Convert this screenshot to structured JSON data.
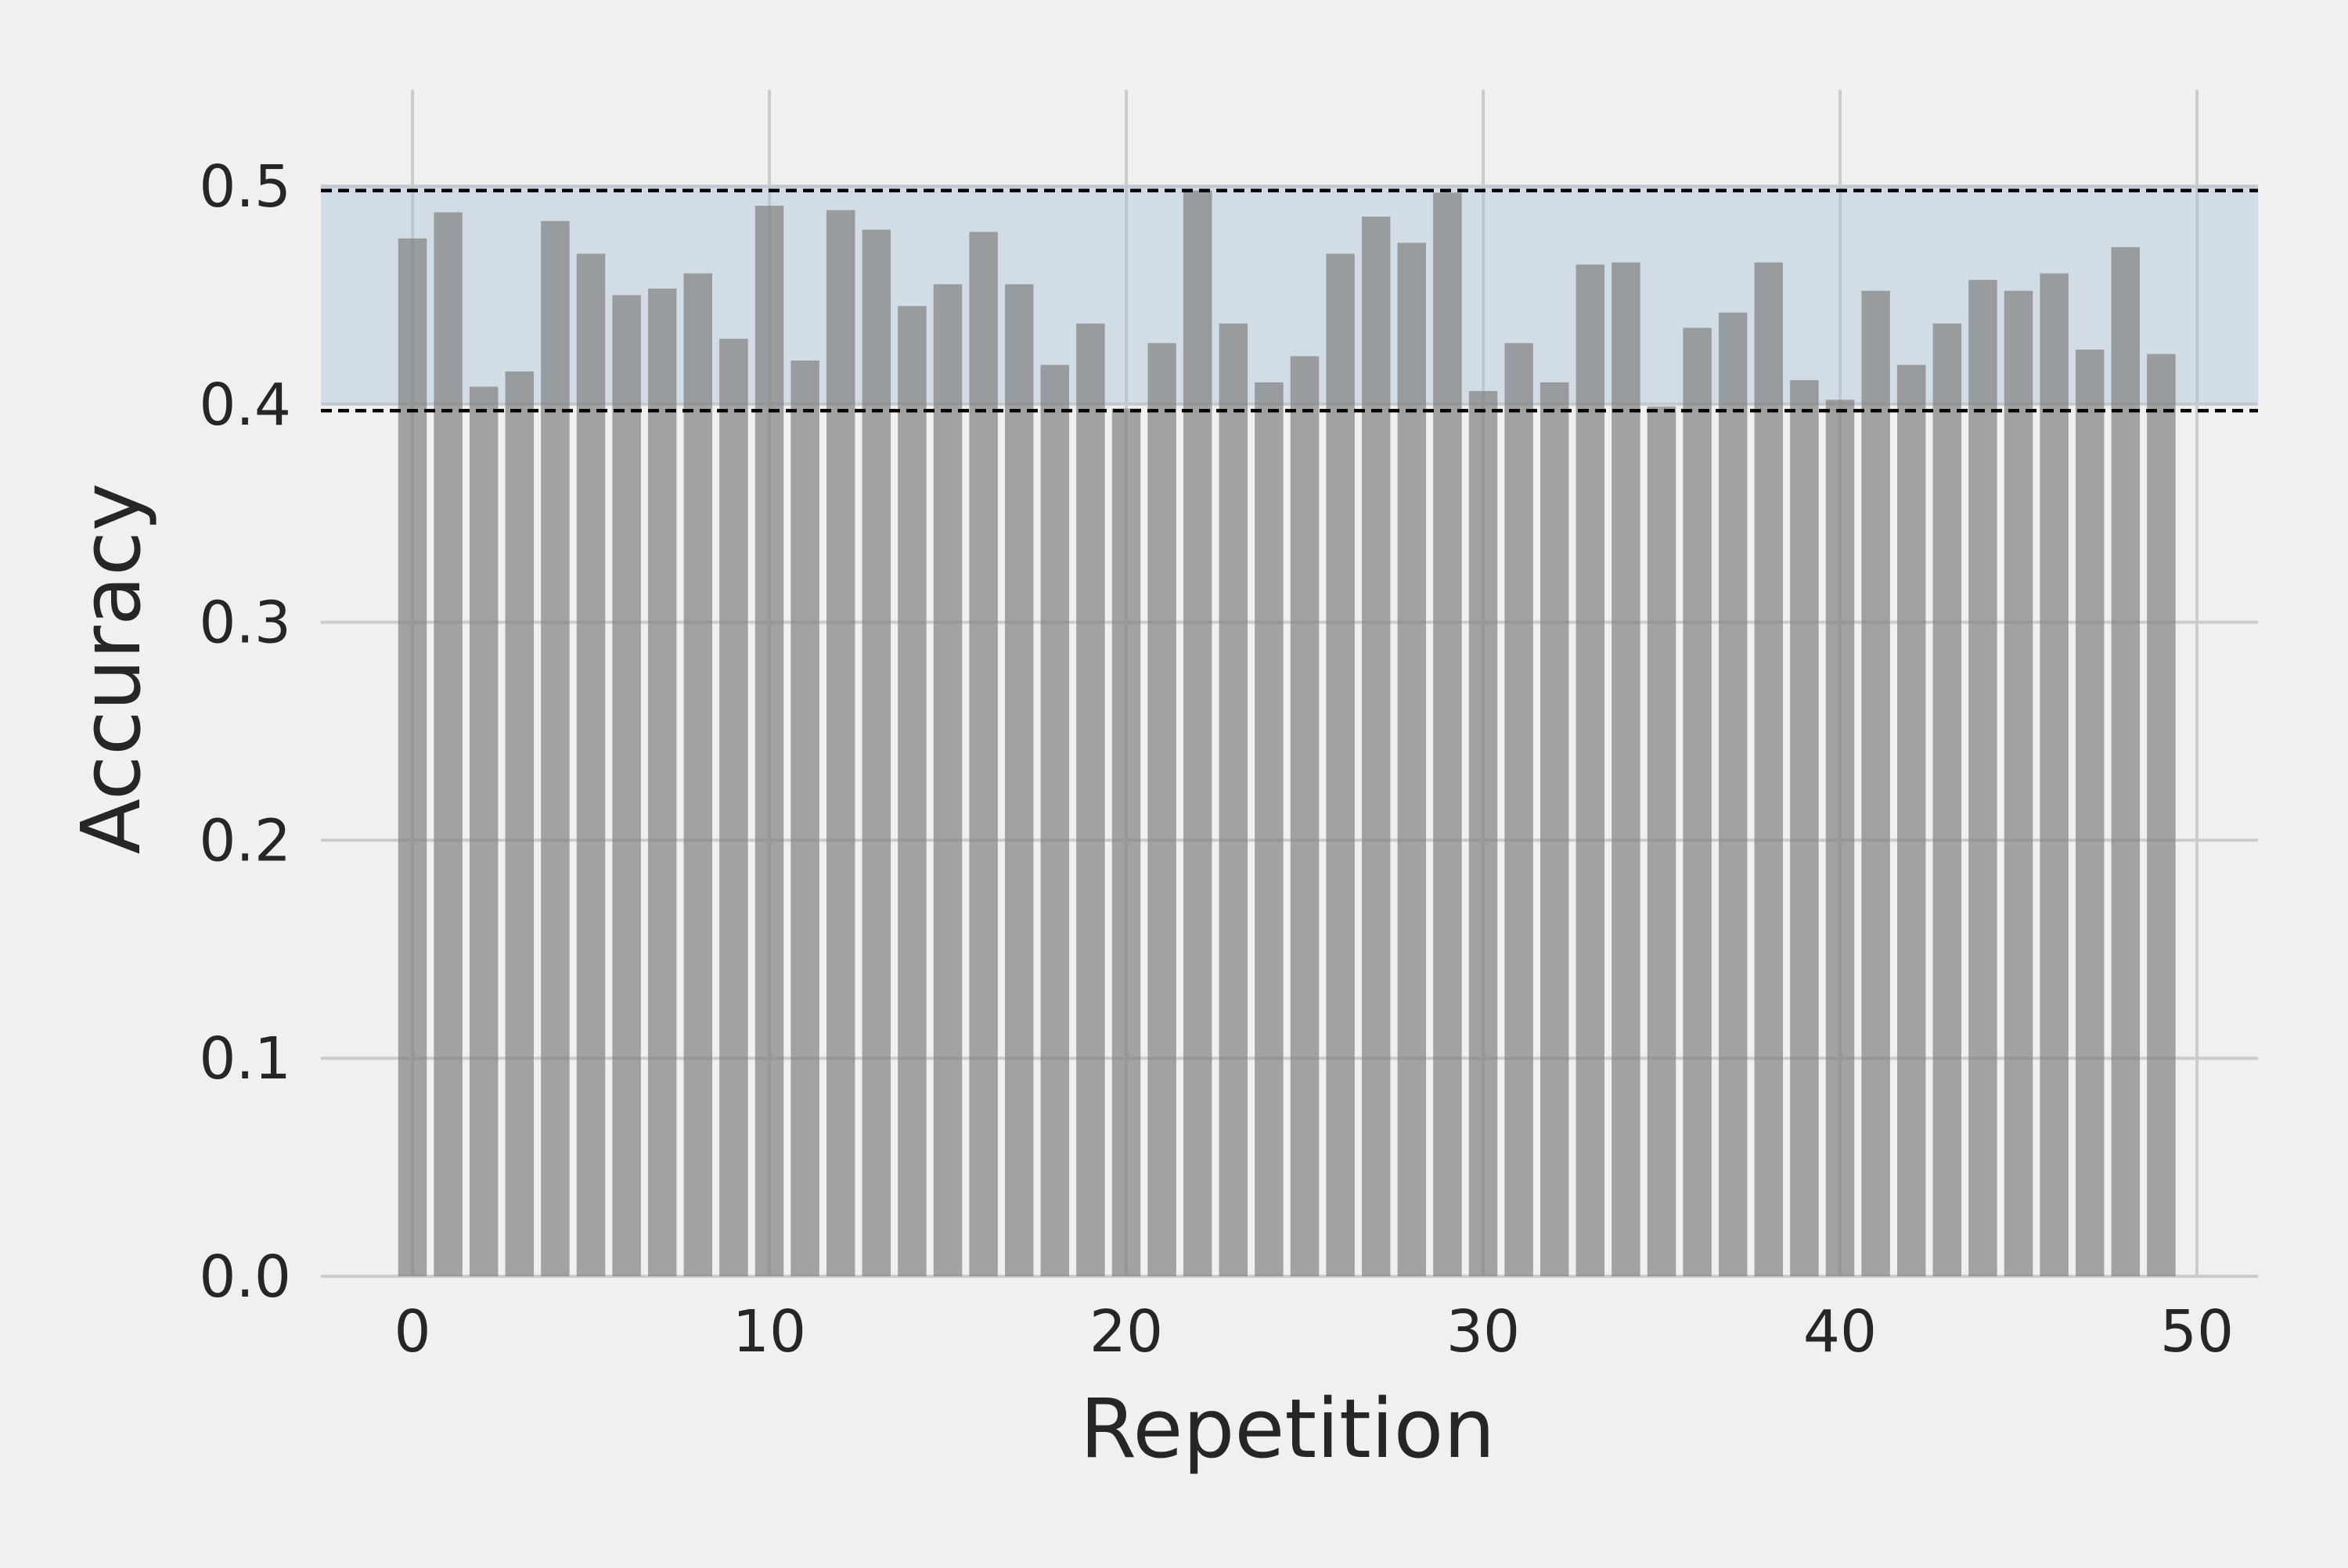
{
  "chart_data": {
    "type": "bar",
    "xlabel": "Repetition",
    "ylabel": "Accuracy",
    "x": [
      0,
      1,
      2,
      3,
      4,
      5,
      6,
      7,
      8,
      9,
      10,
      11,
      12,
      13,
      14,
      15,
      16,
      17,
      18,
      19,
      20,
      21,
      22,
      23,
      24,
      25,
      26,
      27,
      28,
      29,
      30,
      31,
      32,
      33,
      34,
      35,
      36,
      37,
      38,
      39,
      40,
      41,
      42,
      43,
      44,
      45,
      46,
      47,
      48,
      49
    ],
    "values": [
      0.476,
      0.488,
      0.408,
      0.415,
      0.484,
      0.469,
      0.45,
      0.453,
      0.46,
      0.43,
      0.491,
      0.42,
      0.489,
      0.48,
      0.445,
      0.455,
      0.479,
      0.455,
      0.418,
      0.437,
      0.398,
      0.428,
      0.498,
      0.437,
      0.41,
      0.422,
      0.469,
      0.486,
      0.474,
      0.497,
      0.406,
      0.428,
      0.41,
      0.464,
      0.465,
      0.399,
      0.435,
      0.442,
      0.465,
      0.411,
      0.402,
      0.452,
      0.418,
      0.437,
      0.457,
      0.452,
      0.46,
      0.425,
      0.472,
      0.423
    ],
    "xlim": [
      -2.5,
      51.5
    ],
    "ylim": [
      0,
      0.55
    ],
    "xticks": [
      0,
      10,
      20,
      30,
      40,
      50
    ],
    "yticks": [
      0.0,
      0.1,
      0.2,
      0.3,
      0.4,
      0.5
    ],
    "xtick_labels": [
      "0",
      "10",
      "20",
      "30",
      "40",
      "50"
    ],
    "ytick_labels": [
      "0.0",
      "0.1",
      "0.2",
      "0.3",
      "0.4",
      "0.5"
    ],
    "reference_lines": [
      0.397,
      0.498
    ],
    "shaded_band": [
      0.4,
      0.5
    ],
    "grid": true,
    "colors": {
      "background": "#f0f0f0",
      "grid": "#cbcbcb",
      "bar": "#808080",
      "band": "#abc4d9",
      "reference_line": "#000000",
      "text": "#262626"
    }
  }
}
